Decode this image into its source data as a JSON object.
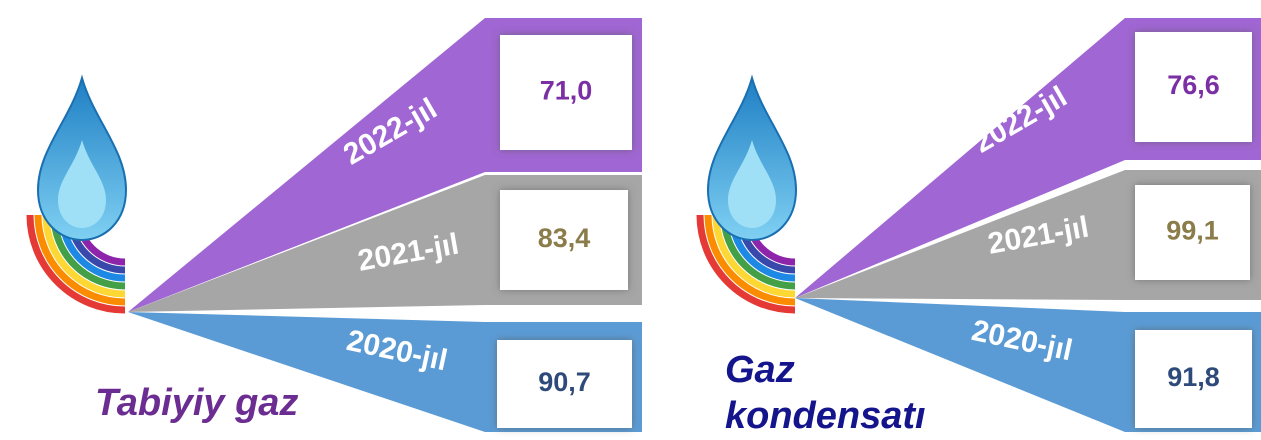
{
  "panels": [
    {
      "title_lines": [
        "Tabiyiy gaz"
      ],
      "items": [
        {
          "year": "2022-jıl",
          "value": "71,0"
        },
        {
          "year": "2021-jıl",
          "value": "83,4"
        },
        {
          "year": "2020-jıl",
          "value": "90,7"
        }
      ]
    },
    {
      "title_lines": [
        "Gaz",
        "kondensatı"
      ],
      "items": [
        {
          "year": "2022-jıl",
          "value": "76,6"
        },
        {
          "year": "2021-jıl",
          "value": "99,1"
        },
        {
          "year": "2020-jıl",
          "value": "91,8"
        }
      ]
    }
  ]
}
